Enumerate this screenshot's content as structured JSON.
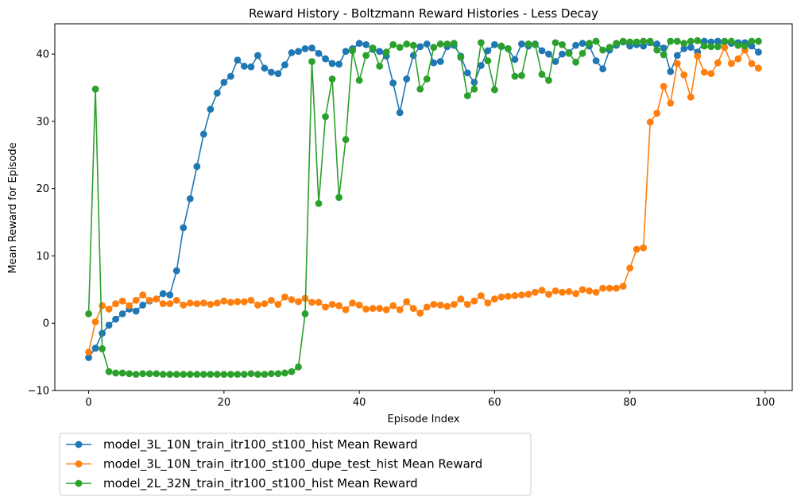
{
  "chart_data": {
    "type": "line",
    "title": "Reward History - Boltzmann Reward Histories - Less Decay",
    "xlabel": "Episode Index",
    "ylabel": "Mean Reward for Episode",
    "xlim": [
      -5,
      104
    ],
    "ylim": [
      -10,
      44.5
    ],
    "xticks": [
      0,
      20,
      40,
      60,
      80,
      100
    ],
    "yticks": [
      -10,
      0,
      10,
      20,
      30,
      40
    ],
    "grid": false,
    "legend_position": "below plot, left",
    "series": [
      {
        "name": "model_3L_10N_train_itr100_st100_hist Mean Reward",
        "color": "#1f77b4",
        "values": [
          -5.1,
          -3.7,
          -1.5,
          -0.3,
          0.6,
          1.4,
          2.1,
          1.8,
          2.7,
          3.3,
          3.6,
          4.4,
          4.2,
          7.8,
          14.2,
          18.5,
          23.3,
          28.1,
          31.8,
          34.2,
          35.8,
          36.7,
          39.1,
          38.2,
          38.1,
          39.8,
          37.9,
          37.3,
          37.1,
          38.4,
          40.2,
          40.4,
          40.8,
          40.9,
          40.1,
          39.3,
          38.6,
          38.5,
          40.4,
          40.8,
          41.6,
          41.4,
          40.7,
          40.4,
          39.7,
          35.7,
          31.3,
          36.3,
          39.8,
          41.1,
          41.5,
          38.7,
          38.9,
          41.1,
          41.3,
          39.7,
          37.2,
          35.8,
          38.3,
          40.5,
          41.4,
          41.1,
          40.8,
          39.2,
          41.5,
          41.2,
          41.5,
          40.5,
          40.0,
          38.9,
          40.0,
          40.2,
          41.3,
          41.6,
          41.2,
          39.0,
          37.8,
          40.6,
          41.3,
          41.8,
          41.2,
          41.4,
          41.2,
          41.7,
          41.5,
          40.9,
          37.4,
          39.8,
          40.8,
          41.0,
          40.3,
          41.9,
          41.8,
          41.9,
          41.8,
          41.6,
          41.7,
          41.7,
          41.2,
          40.3
        ]
      },
      {
        "name": "model_3L_10N_train_itr100_st100_dupe_test_hist Mean Reward",
        "color": "#ff7f0e",
        "values": [
          -4.3,
          0.2,
          2.6,
          2.1,
          2.9,
          3.3,
          2.6,
          3.4,
          4.2,
          3.4,
          3.6,
          2.9,
          2.9,
          3.4,
          2.7,
          3.0,
          2.9,
          3.0,
          2.8,
          3.0,
          3.3,
          3.1,
          3.2,
          3.2,
          3.4,
          2.7,
          2.9,
          3.4,
          2.8,
          3.9,
          3.5,
          3.2,
          3.7,
          3.1,
          3.1,
          2.4,
          2.8,
          2.6,
          2.0,
          3.0,
          2.7,
          2.1,
          2.2,
          2.2,
          2.0,
          2.6,
          2.0,
          3.2,
          2.2,
          1.5,
          2.4,
          2.8,
          2.7,
          2.5,
          2.8,
          3.6,
          2.8,
          3.3,
          4.1,
          3.0,
          3.6,
          3.9,
          4.0,
          4.1,
          4.2,
          4.3,
          4.6,
          4.9,
          4.3,
          4.8,
          4.6,
          4.7,
          4.4,
          5.0,
          4.8,
          4.6,
          5.2,
          5.2,
          5.2,
          5.5,
          8.2,
          11.0,
          11.2,
          29.9,
          31.2,
          35.2,
          32.7,
          38.6,
          36.9,
          33.6,
          39.7,
          37.3,
          37.1,
          38.7,
          41.0,
          38.6,
          39.3,
          40.6,
          38.6,
          37.9
        ]
      },
      {
        "name": "model_2L_32N_train_itr100_st100_hist Mean Reward",
        "color": "#2ca02c",
        "values": [
          1.4,
          34.8,
          -3.8,
          -7.2,
          -7.4,
          -7.4,
          -7.5,
          -7.6,
          -7.5,
          -7.5,
          -7.5,
          -7.6,
          -7.6,
          -7.6,
          -7.6,
          -7.6,
          -7.6,
          -7.6,
          -7.6,
          -7.6,
          -7.6,
          -7.6,
          -7.6,
          -7.6,
          -7.5,
          -7.6,
          -7.6,
          -7.5,
          -7.5,
          -7.4,
          -7.2,
          -6.5,
          1.4,
          38.9,
          17.8,
          30.7,
          36.3,
          18.7,
          27.3,
          40.5,
          36.1,
          39.8,
          40.9,
          38.2,
          40.3,
          41.4,
          41.0,
          41.5,
          41.3,
          34.8,
          36.3,
          41.0,
          41.5,
          41.5,
          41.6,
          39.5,
          33.8,
          34.8,
          41.7,
          39.0,
          34.7,
          41.2,
          40.8,
          36.7,
          36.8,
          41.5,
          41.4,
          37.0,
          36.1,
          41.7,
          41.4,
          40.1,
          38.8,
          40.1,
          41.6,
          41.9,
          40.6,
          41.0,
          41.6,
          41.9,
          41.8,
          41.8,
          41.9,
          41.9,
          40.6,
          39.9,
          41.9,
          41.9,
          41.6,
          41.9,
          42.0,
          41.2,
          41.1,
          41.1,
          41.9,
          41.9,
          41.3,
          41.2,
          41.9,
          41.9
        ]
      }
    ]
  }
}
